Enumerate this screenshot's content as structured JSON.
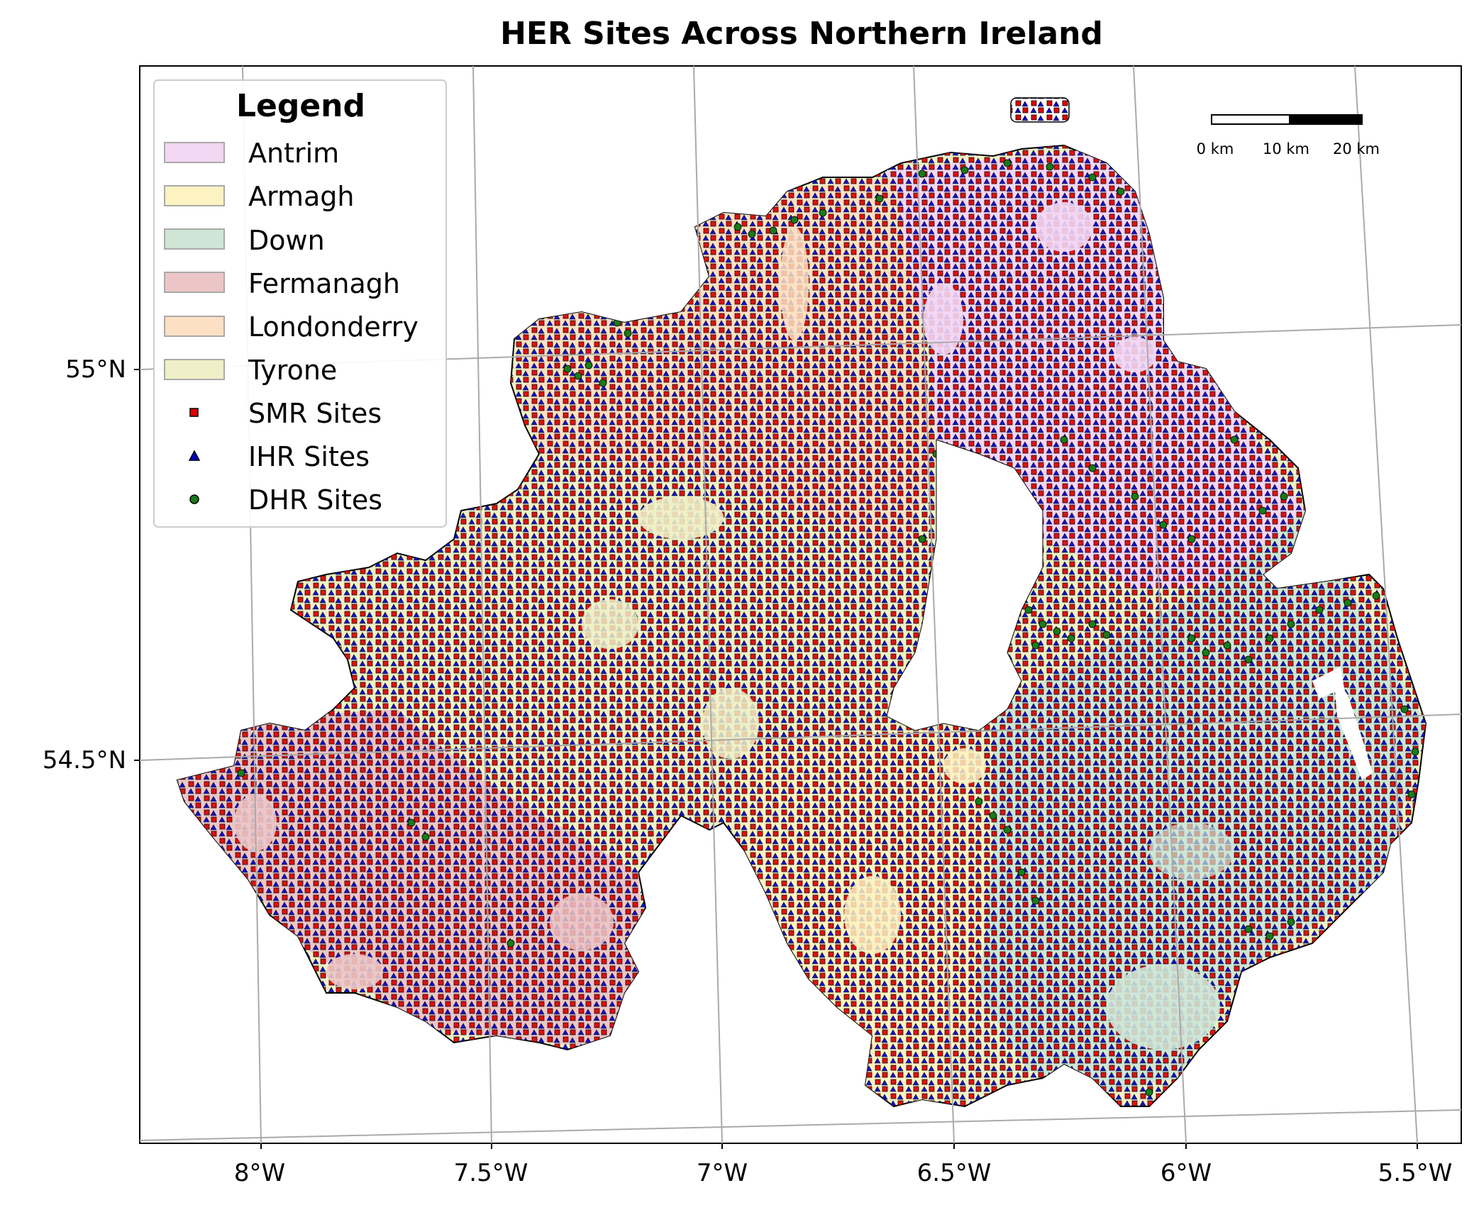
{
  "title": "HER Sites Across Northern Ireland",
  "axes": {
    "x_ticks": [
      "8°W",
      "7.5°W",
      "7°W",
      "6.5°W",
      "6°W",
      "5.5°W"
    ],
    "y_ticks": [
      "55°N",
      "54.5°N"
    ]
  },
  "scale_bar": {
    "labels": [
      "0 km",
      "10 km",
      "20 km"
    ]
  },
  "legend": {
    "title": "Legend",
    "counties": [
      {
        "label": "Antrim",
        "color": "#f3d7f3"
      },
      {
        "label": "Armagh",
        "color": "#fdf2c2"
      },
      {
        "label": "Down",
        "color": "#cfe5d6"
      },
      {
        "label": "Fermanagh",
        "color": "#ecc6c7"
      },
      {
        "label": "Londonderry",
        "color": "#fde0c3"
      },
      {
        "label": "Tyrone",
        "color": "#eff0c7"
      }
    ],
    "markers": [
      {
        "label": "SMR Sites",
        "shape": "square",
        "color": "#e00000"
      },
      {
        "label": "IHR Sites",
        "shape": "triangle",
        "color": "#0000cc"
      },
      {
        "label": "DHR Sites",
        "shape": "circle",
        "color": "#1a7a1a"
      }
    ]
  }
}
